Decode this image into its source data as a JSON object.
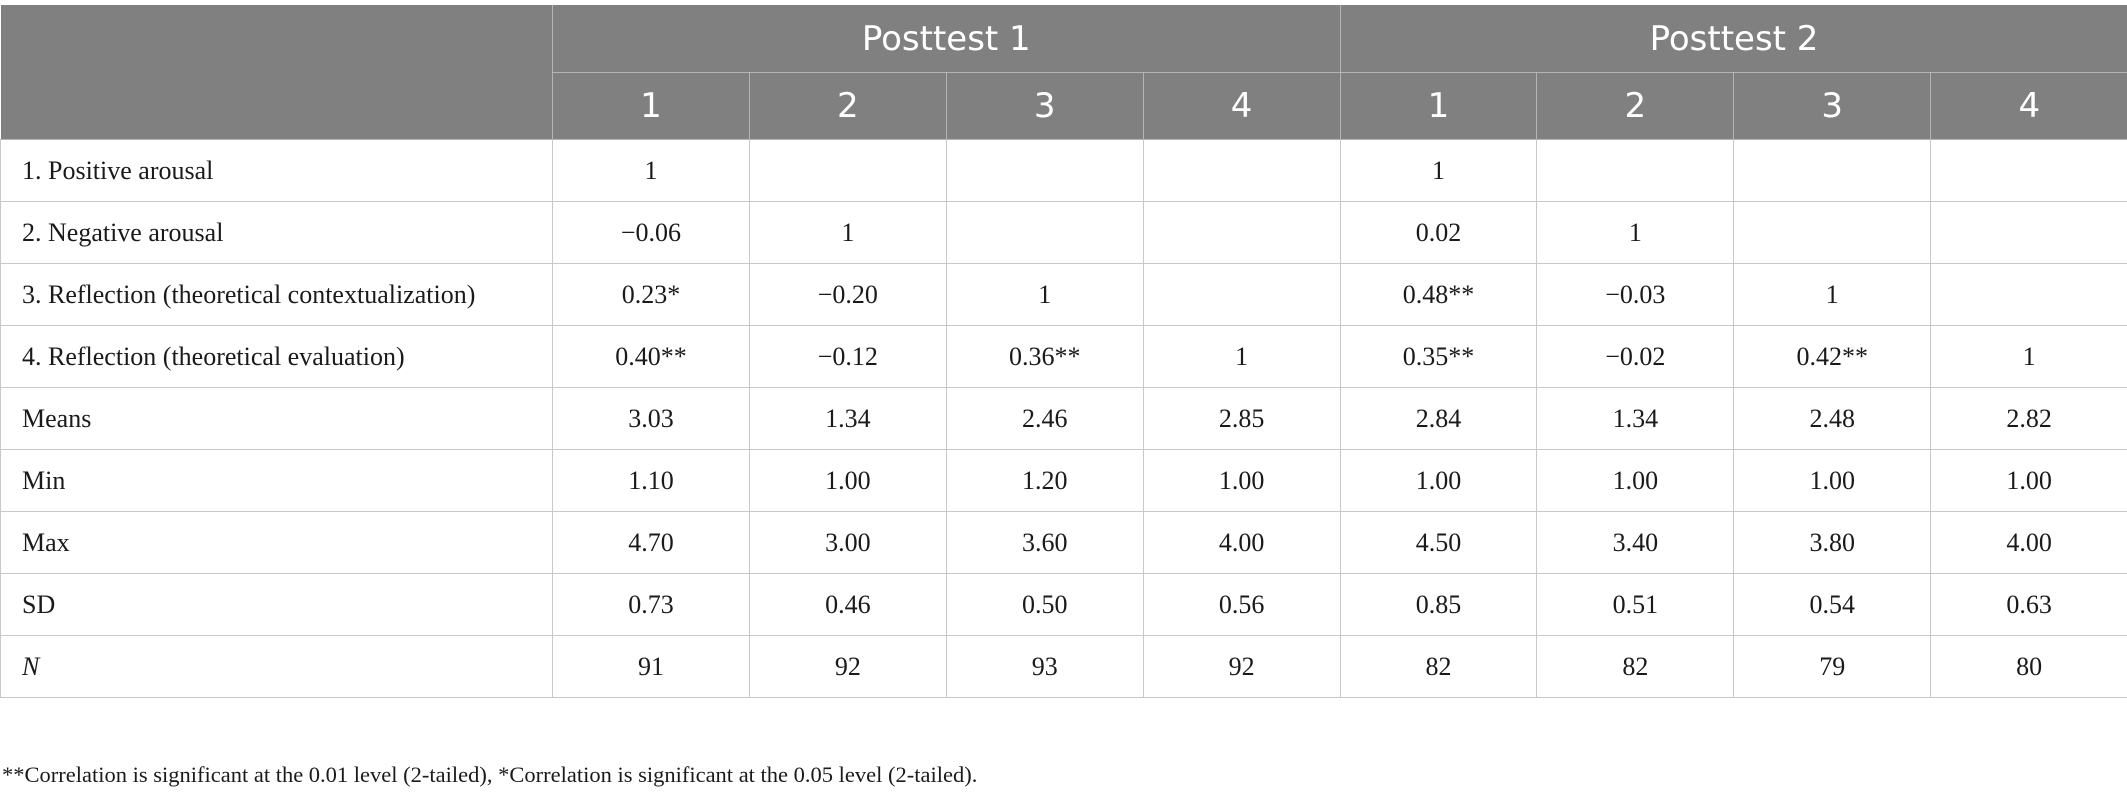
{
  "table": {
    "groups": [
      "Posttest 1",
      "Posttest 2"
    ],
    "columns": [
      "1",
      "2",
      "3",
      "4",
      "1",
      "2",
      "3",
      "4"
    ],
    "rows": [
      {
        "label": "1. Positive arousal",
        "cells": [
          "1",
          "",
          "",
          "",
          "1",
          "",
          "",
          ""
        ]
      },
      {
        "label": "2. Negative arousal",
        "cells": [
          "−0.06",
          "1",
          "",
          "",
          "0.02",
          "1",
          "",
          ""
        ]
      },
      {
        "label": "3. Reflection (theoretical contextualization)",
        "cells": [
          "0.23*",
          "−0.20",
          "1",
          "",
          "0.48**",
          "−0.03",
          "1",
          ""
        ]
      },
      {
        "label": "4. Reflection (theoretical evaluation)",
        "cells": [
          "0.40**",
          "−0.12",
          "0.36**",
          "1",
          "0.35**",
          "−0.02",
          "0.42**",
          "1"
        ]
      },
      {
        "label": "Means",
        "cells": [
          "3.03",
          "1.34",
          "2.46",
          "2.85",
          "2.84",
          "1.34",
          "2.48",
          "2.82"
        ]
      },
      {
        "label": "Min",
        "cells": [
          "1.10",
          "1.00",
          "1.20",
          "1.00",
          "1.00",
          "1.00",
          "1.00",
          "1.00"
        ]
      },
      {
        "label": "Max",
        "cells": [
          "4.70",
          "3.00",
          "3.60",
          "4.00",
          "4.50",
          "3.40",
          "3.80",
          "4.00"
        ]
      },
      {
        "label": "SD",
        "cells": [
          "0.73",
          "0.46",
          "0.50",
          "0.56",
          "0.85",
          "0.51",
          "0.54",
          "0.63"
        ]
      },
      {
        "label": "N",
        "cells": [
          "91",
          "92",
          "93",
          "92",
          "82",
          "82",
          "79",
          "80"
        ]
      }
    ]
  },
  "footnote": "**Correlation is significant at the 0.01 level (2-tailed), *Correlation is significant at the 0.05 level (2-tailed).",
  "colors": {
    "header_bg": "#7f807f",
    "header_text": "#ffffff",
    "grid_line": "#c8c8c8"
  }
}
